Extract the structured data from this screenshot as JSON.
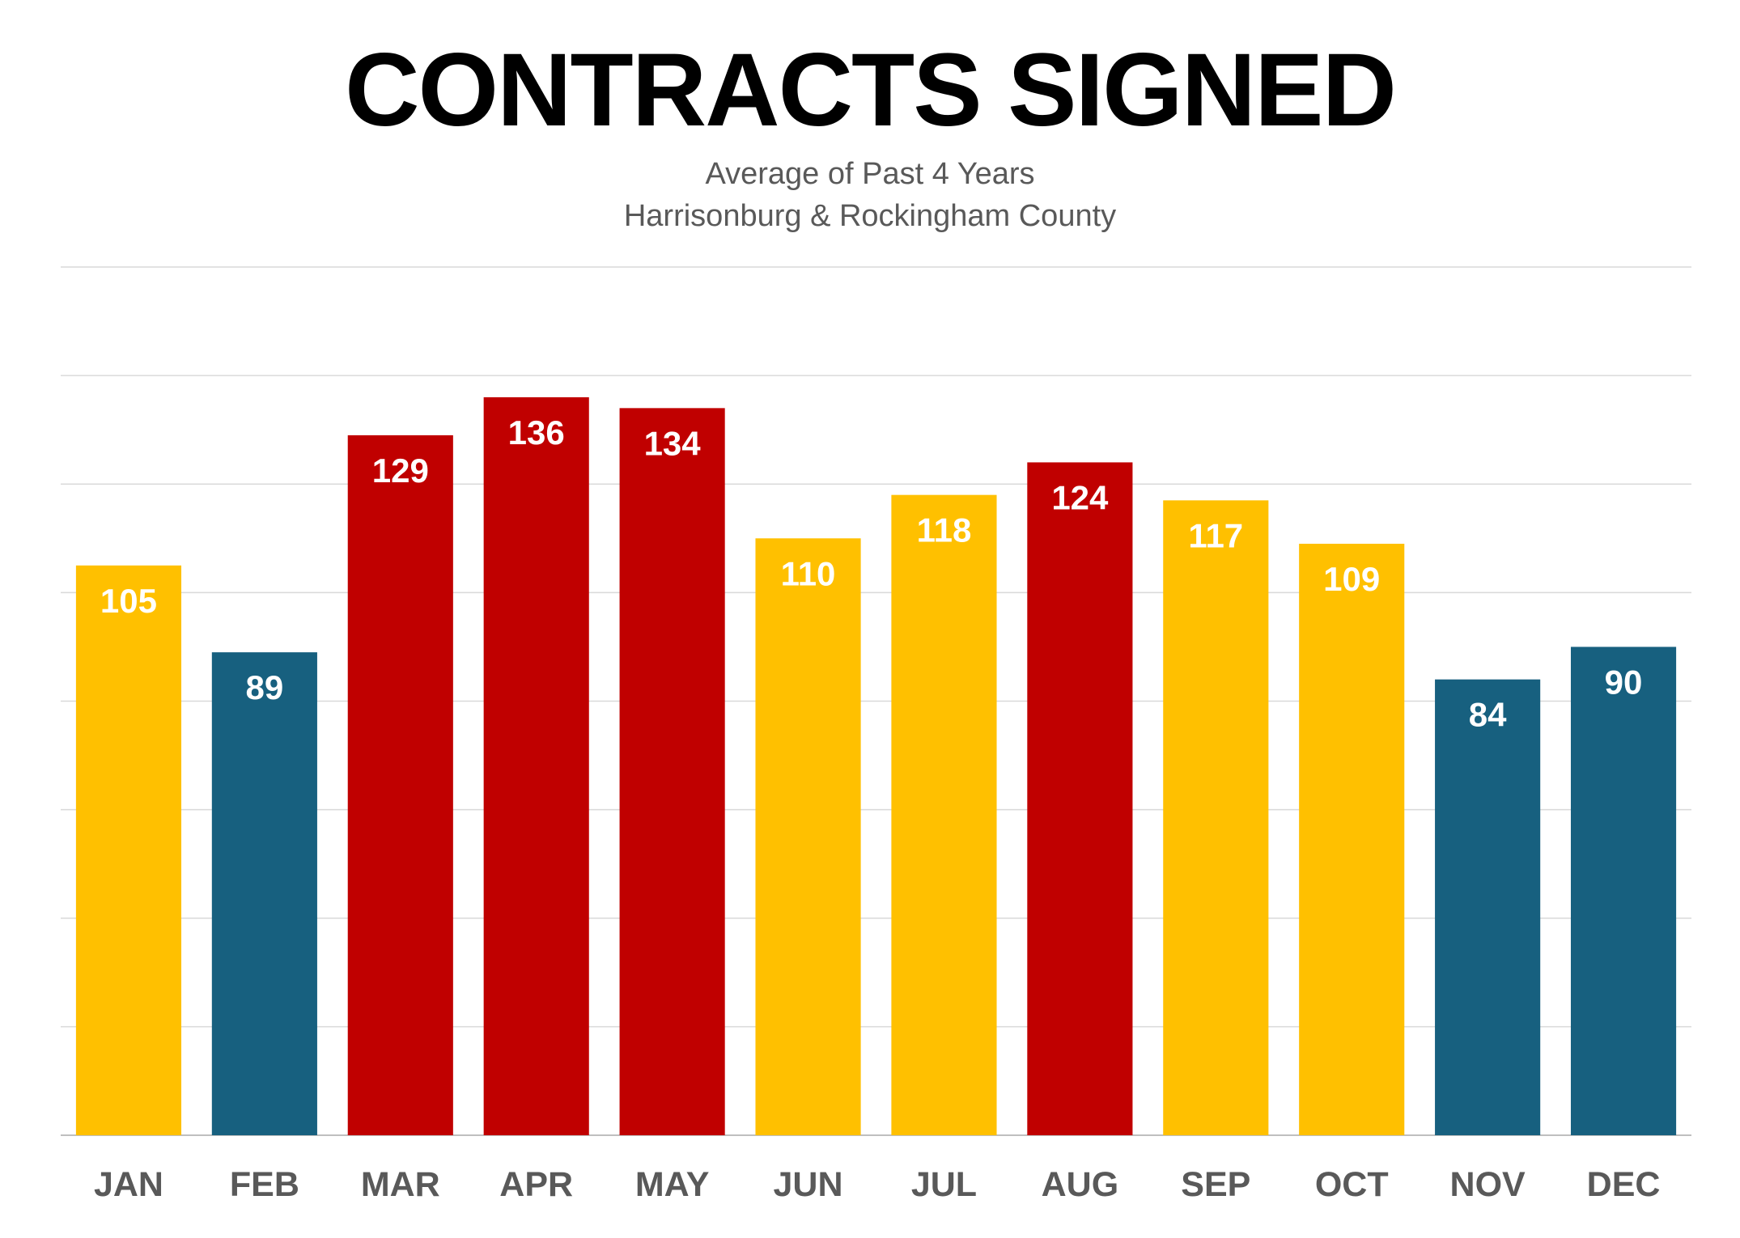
{
  "chart_data": {
    "type": "bar",
    "title": "CONTRACTS SIGNED",
    "subtitle": [
      "Average of Past 4 Years",
      "Harrisonburg & Rockingham County"
    ],
    "categories": [
      "JAN",
      "FEB",
      "MAR",
      "APR",
      "MAY",
      "JUN",
      "JUL",
      "AUG",
      "SEP",
      "OCT",
      "NOV",
      "DEC"
    ],
    "values": [
      105,
      89,
      129,
      136,
      134,
      110,
      118,
      124,
      117,
      109,
      84,
      90
    ],
    "bar_colors": [
      "#FFC000",
      "#17607F",
      "#C00000",
      "#C00000",
      "#C00000",
      "#FFC000",
      "#FFC000",
      "#C00000",
      "#FFC000",
      "#FFC000",
      "#17607F",
      "#17607F"
    ],
    "xlabel": "",
    "ylabel": "",
    "ylim": [
      0,
      160
    ],
    "gridlines": true,
    "legend": "none"
  }
}
